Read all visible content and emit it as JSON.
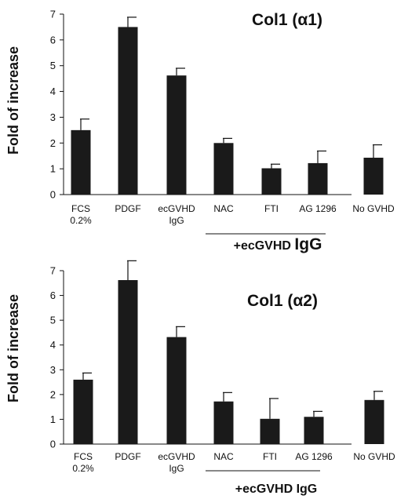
{
  "chart_data": [
    {
      "type": "bar",
      "title": "Col1 (α1)",
      "ylabel": "Fold of increase",
      "xlabel": "",
      "ylim": [
        0,
        7
      ],
      "yticks": [
        0,
        1,
        2,
        3,
        4,
        5,
        6,
        7
      ],
      "categories": [
        "FCS 0.2%",
        "PDGF",
        "ecGVHD IgG",
        "NAC",
        "FTI",
        "AG 1296",
        "No GVHD"
      ],
      "category_lines": [
        [
          "FCS",
          "0.2%"
        ],
        [
          "PDGF"
        ],
        [
          "ecGVHD",
          "IgG"
        ],
        [
          "NAC"
        ],
        [
          "FTI"
        ],
        [
          "AG 1296"
        ],
        [
          "No GVHD"
        ]
      ],
      "values": [
        2.5,
        6.5,
        4.62,
        2.0,
        1.02,
        1.22,
        1.43
      ],
      "errors": [
        0.43,
        0.38,
        0.28,
        0.18,
        0.16,
        0.47,
        0.5
      ],
      "bar_color": "#1a1a1a",
      "group_label": {
        "prefix": "+ecGVHD ",
        "emphasis": "IgG"
      }
    },
    {
      "type": "bar",
      "title": "Col1 (α2)",
      "ylabel": "Fold of increase",
      "xlabel": "",
      "ylim": [
        0,
        7
      ],
      "yticks": [
        0,
        1,
        2,
        3,
        4,
        5,
        6,
        7
      ],
      "categories": [
        "FCS 0.2%",
        "PDGF",
        "ecGVHD IgG",
        "NAC",
        "FTI",
        "AG 1296",
        "No GVHD"
      ],
      "category_lines": [
        [
          "FCS",
          "0.2%"
        ],
        [
          "PDGF"
        ],
        [
          "ecGVHD",
          "IgG"
        ],
        [
          "NAC"
        ],
        [
          "FTI"
        ],
        [
          "AG 1296"
        ],
        [
          "No GVHD"
        ]
      ],
      "values": [
        2.6,
        6.62,
        4.32,
        1.72,
        1.02,
        1.1,
        1.78
      ],
      "errors": [
        0.27,
        0.78,
        0.42,
        0.36,
        0.82,
        0.22,
        0.35
      ],
      "bar_color": "#1a1a1a",
      "group_label": {
        "prefix": "+ecGVHD IgG",
        "emphasis": ""
      }
    }
  ]
}
